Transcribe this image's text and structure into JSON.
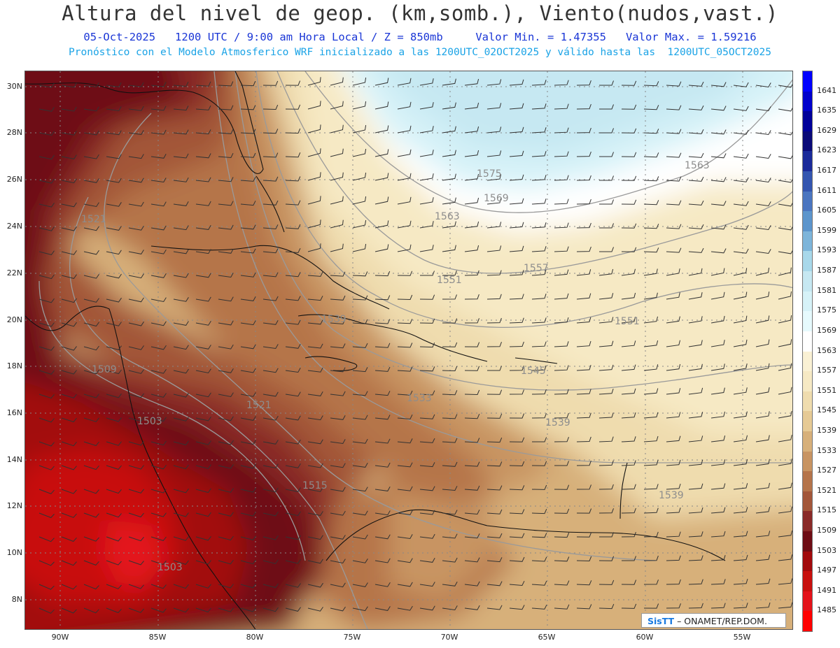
{
  "title": "Altura del nivel de geop. (km,somb.), Viento(nudos,vast.)",
  "subtitle_line1": "05-Oct-2025   1200 UTC / 9:00 am Hora Local / Z = 850mb     Valor Min. = 1.47355   Valor Max. = 1.59216",
  "subtitle_line2": "Pronóstico con el Modelo Atmosferico WRF inicializado a las 1200UTC_02OCT2025 y válido hasta las  1200UTC_05OCT2025",
  "lat_labels": [
    "30N",
    "28N",
    "26N",
    "24N",
    "22N",
    "20N",
    "18N",
    "16N",
    "14N",
    "12N",
    "10N",
    "8N"
  ],
  "lon_labels": [
    "90W",
    "85W",
    "80W",
    "75W",
    "70W",
    "65W",
    "60W",
    "55W"
  ],
  "colorbar_labels": [
    "1641",
    "1635",
    "1629",
    "1623",
    "1617",
    "1611",
    "1605",
    "1599",
    "1593",
    "1587",
    "1581",
    "1575",
    "1569",
    "1563",
    "1557",
    "1551",
    "1545",
    "1539",
    "1533",
    "1527",
    "1521",
    "1515",
    "1509",
    "1503",
    "1497",
    "1491",
    "1485"
  ],
  "colorbar_colors": [
    "#0000ff",
    "#0000cc",
    "#00009a",
    "#0a0a78",
    "#1a2a9a",
    "#3355b0",
    "#4a75c0",
    "#5c95cc",
    "#7db5da",
    "#a8d8ea",
    "#c6e8f2",
    "#d6f2f8",
    "#e6fafd",
    "#ffffff",
    "#faf1d4",
    "#f6e9c4",
    "#efdcae",
    "#e6ca95",
    "#d7b07a",
    "#c89462",
    "#b5744a",
    "#a35639",
    "#8a2a28",
    "#6e0c14",
    "#a20a0c",
    "#c8100e",
    "#e4121a",
    "#ff0000"
  ],
  "contour_labels": [
    {
      "text": "1575"
    },
    {
      "text": "1569"
    },
    {
      "text": "1563"
    },
    {
      "text": "1563"
    },
    {
      "text": "1557"
    },
    {
      "text": "1551"
    },
    {
      "text": "1551"
    },
    {
      "text": "1545"
    },
    {
      "text": "1539"
    },
    {
      "text": "1539"
    },
    {
      "text": "1539"
    },
    {
      "text": "1533"
    },
    {
      "text": "1521"
    },
    {
      "text": "1521"
    },
    {
      "text": "1515"
    },
    {
      "text": "1509"
    },
    {
      "text": "1503"
    },
    {
      "text": "1503"
    }
  ],
  "credit": {
    "logo": "SisTT",
    "text": "– ONAMET/REP.DOM."
  }
}
